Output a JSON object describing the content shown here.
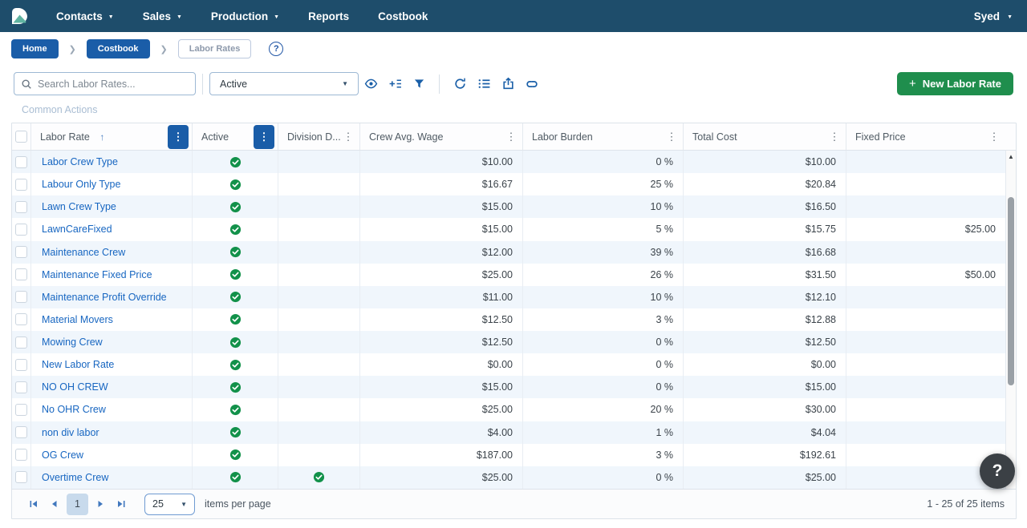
{
  "navbar": {
    "items": [
      {
        "label": "Contacts",
        "caret": true
      },
      {
        "label": "Sales",
        "caret": true
      },
      {
        "label": "Production",
        "caret": true
      },
      {
        "label": "Reports",
        "caret": false
      },
      {
        "label": "Costbook",
        "caret": false
      }
    ],
    "user": {
      "label": "Syed"
    }
  },
  "breadcrumb": {
    "items": [
      {
        "label": "Home",
        "variant": "filled"
      },
      {
        "label": "Costbook",
        "variant": "filled"
      },
      {
        "label": "Labor Rates",
        "variant": "outlined"
      }
    ],
    "help_icon": "question-mark"
  },
  "toolbar": {
    "search_placeholder": "Search Labor Rates...",
    "status_filter_value": "Active",
    "icon_group_left": [
      "eye",
      "column-chooser",
      "filter"
    ],
    "icon_group_right": [
      "refresh",
      "list",
      "export",
      "link"
    ],
    "new_button_label": "New Labor Rate",
    "new_button_plus": "+"
  },
  "common_actions_label": "Common Actions",
  "table": {
    "columns": [
      {
        "label": "",
        "type": "checkbox"
      },
      {
        "label": "Labor Rate",
        "sorted": "asc",
        "menu": "active"
      },
      {
        "label": "Active",
        "menu": "active"
      },
      {
        "label": "Division D...",
        "menu": "plain"
      },
      {
        "label": "Crew Avg. Wage",
        "menu": "plain"
      },
      {
        "label": "Labor Burden",
        "menu": "plain"
      },
      {
        "label": "Total Cost",
        "menu": "plain"
      },
      {
        "label": "Fixed Price",
        "menu": "plain"
      }
    ],
    "rows": [
      {
        "name": "Labor Crew Type",
        "active": true,
        "division_default": false,
        "crew_avg_wage": "$10.00",
        "labor_burden": "0 %",
        "total_cost": "$10.00",
        "fixed_price": ""
      },
      {
        "name": "Labour Only Type",
        "active": true,
        "division_default": false,
        "crew_avg_wage": "$16.67",
        "labor_burden": "25 %",
        "total_cost": "$20.84",
        "fixed_price": ""
      },
      {
        "name": "Lawn Crew Type",
        "active": true,
        "division_default": false,
        "crew_avg_wage": "$15.00",
        "labor_burden": "10 %",
        "total_cost": "$16.50",
        "fixed_price": ""
      },
      {
        "name": "LawnCareFixed",
        "active": true,
        "division_default": false,
        "crew_avg_wage": "$15.00",
        "labor_burden": "5 %",
        "total_cost": "$15.75",
        "fixed_price": "$25.00"
      },
      {
        "name": "Maintenance Crew",
        "active": true,
        "division_default": false,
        "crew_avg_wage": "$12.00",
        "labor_burden": "39 %",
        "total_cost": "$16.68",
        "fixed_price": ""
      },
      {
        "name": "Maintenance Fixed Price",
        "active": true,
        "division_default": false,
        "crew_avg_wage": "$25.00",
        "labor_burden": "26 %",
        "total_cost": "$31.50",
        "fixed_price": "$50.00"
      },
      {
        "name": "Maintenance Profit Override",
        "active": true,
        "division_default": false,
        "crew_avg_wage": "$11.00",
        "labor_burden": "10 %",
        "total_cost": "$12.10",
        "fixed_price": ""
      },
      {
        "name": "Material Movers",
        "active": true,
        "division_default": false,
        "crew_avg_wage": "$12.50",
        "labor_burden": "3 %",
        "total_cost": "$12.88",
        "fixed_price": ""
      },
      {
        "name": "Mowing Crew",
        "active": true,
        "division_default": false,
        "crew_avg_wage": "$12.50",
        "labor_burden": "0 %",
        "total_cost": "$12.50",
        "fixed_price": ""
      },
      {
        "name": "New Labor Rate",
        "active": true,
        "division_default": false,
        "crew_avg_wage": "$0.00",
        "labor_burden": "0 %",
        "total_cost": "$0.00",
        "fixed_price": ""
      },
      {
        "name": "NO OH CREW",
        "active": true,
        "division_default": false,
        "crew_avg_wage": "$15.00",
        "labor_burden": "0 %",
        "total_cost": "$15.00",
        "fixed_price": ""
      },
      {
        "name": "No OHR Crew",
        "active": true,
        "division_default": false,
        "crew_avg_wage": "$25.00",
        "labor_burden": "20 %",
        "total_cost": "$30.00",
        "fixed_price": ""
      },
      {
        "name": "non div labor",
        "active": true,
        "division_default": false,
        "crew_avg_wage": "$4.00",
        "labor_burden": "1 %",
        "total_cost": "$4.04",
        "fixed_price": ""
      },
      {
        "name": "OG Crew",
        "active": true,
        "division_default": false,
        "crew_avg_wage": "$187.00",
        "labor_burden": "3 %",
        "total_cost": "$192.61",
        "fixed_price": ""
      },
      {
        "name": "Overtime Crew",
        "active": true,
        "division_default": true,
        "crew_avg_wage": "$25.00",
        "labor_burden": "0 %",
        "total_cost": "$25.00",
        "fixed_price": ""
      }
    ]
  },
  "pagination": {
    "current_page": "1",
    "page_size": "25",
    "items_per_page_label": "items per page",
    "range_label": "1 - 25 of 25 items"
  },
  "help_button_label": "?",
  "colors": {
    "navbar_bg": "#1e4d6b",
    "accent_blue": "#1a5da8",
    "link_blue": "#1766c1",
    "button_green": "#1f8e4d",
    "check_green": "#12914a",
    "row_stripe": "#f0f6fc"
  }
}
